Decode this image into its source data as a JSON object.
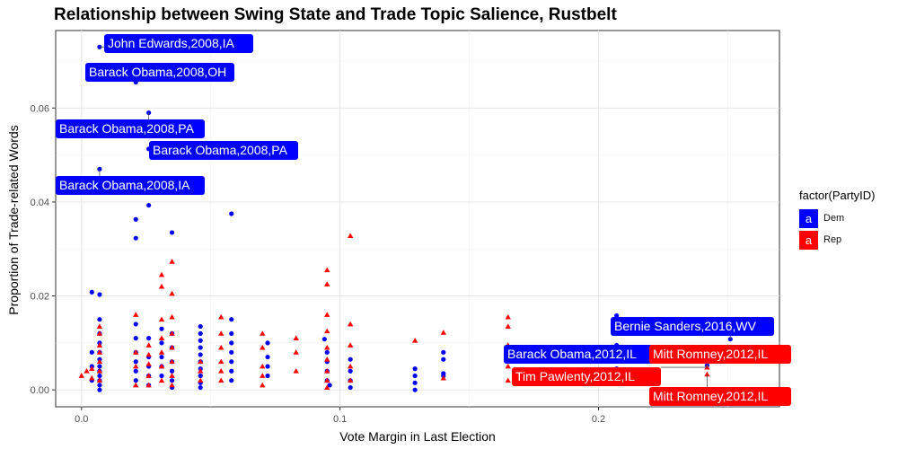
{
  "chart_data": {
    "type": "scatter",
    "title": "Relationship between Swing State and Trade Topic Salience, Rustbelt",
    "xlabel": "Vote Margin in Last Election",
    "ylabel": "Proportion of Trade-related Words",
    "xlim": [
      -0.01,
      0.27
    ],
    "ylim": [
      -0.0036,
      0.0765
    ],
    "x_ticks": [
      0.0,
      0.1,
      0.2
    ],
    "x_tick_labels": [
      "0.0",
      "0.1",
      "0.2"
    ],
    "y_ticks": [
      0.0,
      0.02,
      0.04,
      0.06
    ],
    "y_tick_labels": [
      "0.00",
      "0.02",
      "0.04",
      "0.06"
    ],
    "grid": true,
    "legend": {
      "title": "factor(PartyID)",
      "position": "right",
      "entries": [
        {
          "name": "Dem",
          "color": "#0000ff",
          "marker": "circle",
          "key_text": "a"
        },
        {
          "name": "Rep",
          "color": "#ff0000",
          "marker": "triangle",
          "key_text": "a"
        }
      ]
    },
    "series": [
      {
        "name": "Dem",
        "color": "#0000ff",
        "marker": "circle",
        "points": [
          [
            0.007,
            0.073
          ],
          [
            0.021,
            0.0655
          ],
          [
            0.026,
            0.059
          ],
          [
            0.026,
            0.0513
          ],
          [
            0.007,
            0.047
          ],
          [
            0.026,
            0.0393
          ],
          [
            0.058,
            0.0375
          ],
          [
            0.021,
            0.0363
          ],
          [
            0.035,
            0.0335
          ],
          [
            0.021,
            0.0323
          ],
          [
            0.004,
            0.0208
          ],
          [
            0.007,
            0.0203
          ],
          [
            0.004,
            0.008
          ],
          [
            0.004,
            0.005
          ],
          [
            0.004,
            0.002
          ],
          [
            0.007,
            0.015
          ],
          [
            0.007,
            0.012
          ],
          [
            0.007,
            0.01
          ],
          [
            0.007,
            0.008
          ],
          [
            0.007,
            0.0065
          ],
          [
            0.007,
            0.005
          ],
          [
            0.007,
            0.004
          ],
          [
            0.007,
            0.003
          ],
          [
            0.007,
            0.002
          ],
          [
            0.007,
            0.001
          ],
          [
            0.007,
            0.0
          ],
          [
            0.021,
            0.014
          ],
          [
            0.021,
            0.011
          ],
          [
            0.021,
            0.008
          ],
          [
            0.021,
            0.006
          ],
          [
            0.021,
            0.004
          ],
          [
            0.021,
            0.002
          ],
          [
            0.026,
            0.011
          ],
          [
            0.026,
            0.007
          ],
          [
            0.026,
            0.005
          ],
          [
            0.026,
            0.003
          ],
          [
            0.026,
            0.001
          ],
          [
            0.031,
            0.013
          ],
          [
            0.031,
            0.01
          ],
          [
            0.031,
            0.007
          ],
          [
            0.031,
            0.005
          ],
          [
            0.031,
            0.003
          ],
          [
            0.035,
            0.012
          ],
          [
            0.035,
            0.009
          ],
          [
            0.035,
            0.006
          ],
          [
            0.035,
            0.004
          ],
          [
            0.035,
            0.002
          ],
          [
            0.035,
            0.0005
          ],
          [
            0.046,
            0.0135
          ],
          [
            0.046,
            0.012
          ],
          [
            0.046,
            0.0105
          ],
          [
            0.046,
            0.009
          ],
          [
            0.046,
            0.0075
          ],
          [
            0.046,
            0.006
          ],
          [
            0.046,
            0.0045
          ],
          [
            0.046,
            0.003
          ],
          [
            0.046,
            0.0015
          ],
          [
            0.046,
            0.0005
          ],
          [
            0.058,
            0.015
          ],
          [
            0.058,
            0.012
          ],
          [
            0.058,
            0.01
          ],
          [
            0.058,
            0.008
          ],
          [
            0.058,
            0.006
          ],
          [
            0.058,
            0.004
          ],
          [
            0.058,
            0.002
          ],
          [
            0.072,
            0.01
          ],
          [
            0.072,
            0.007
          ],
          [
            0.072,
            0.005
          ],
          [
            0.072,
            0.003
          ],
          [
            0.094,
            0.0108
          ],
          [
            0.095,
            0.008
          ],
          [
            0.095,
            0.006
          ],
          [
            0.095,
            0.004
          ],
          [
            0.095,
            0.002
          ],
          [
            0.096,
            0.001
          ],
          [
            0.104,
            0.0065
          ],
          [
            0.104,
            0.004
          ],
          [
            0.104,
            0.002
          ],
          [
            0.104,
            0.0005
          ],
          [
            0.129,
            0.0045
          ],
          [
            0.129,
            0.003
          ],
          [
            0.129,
            0.0015
          ],
          [
            0.129,
            0.0
          ],
          [
            0.14,
            0.008
          ],
          [
            0.14,
            0.0065
          ],
          [
            0.14,
            0.0035
          ],
          [
            0.14,
            0.003
          ],
          [
            0.17,
            0.0065
          ],
          [
            0.169,
            0.002
          ],
          [
            0.207,
            0.0158
          ],
          [
            0.207,
            0.0143
          ],
          [
            0.207,
            0.0125
          ],
          [
            0.207,
            0.0095
          ],
          [
            0.207,
            0.0065
          ],
          [
            0.207,
            0.0045
          ],
          [
            0.251,
            0.0108
          ],
          [
            0.242,
            0.0052
          ]
        ]
      },
      {
        "name": "Rep",
        "color": "#ff0000",
        "marker": "triangle",
        "points": [
          [
            0.0,
            0.003
          ],
          [
            0.002,
            0.004
          ],
          [
            0.004,
            0.0045
          ],
          [
            0.004,
            0.0025
          ],
          [
            0.007,
            0.0135
          ],
          [
            0.007,
            0.012
          ],
          [
            0.007,
            0.0095
          ],
          [
            0.007,
            0.008
          ],
          [
            0.007,
            0.006
          ],
          [
            0.007,
            0.004
          ],
          [
            0.007,
            0.002
          ],
          [
            0.021,
            0.016
          ],
          [
            0.021,
            0.008
          ],
          [
            0.021,
            0.005
          ],
          [
            0.021,
            0.001
          ],
          [
            0.026,
            0.0095
          ],
          [
            0.026,
            0.0075
          ],
          [
            0.026,
            0.0055
          ],
          [
            0.026,
            0.003
          ],
          [
            0.026,
            0.001
          ],
          [
            0.031,
            0.0245
          ],
          [
            0.031,
            0.022
          ],
          [
            0.031,
            0.015
          ],
          [
            0.031,
            0.011
          ],
          [
            0.031,
            0.008
          ],
          [
            0.031,
            0.005
          ],
          [
            0.031,
            0.002
          ],
          [
            0.035,
            0.0273
          ],
          [
            0.035,
            0.0205
          ],
          [
            0.035,
            0.0155
          ],
          [
            0.035,
            0.012
          ],
          [
            0.035,
            0.009
          ],
          [
            0.035,
            0.006
          ],
          [
            0.035,
            0.003
          ],
          [
            0.035,
            0.001
          ],
          [
            0.046,
            0.006
          ],
          [
            0.046,
            0.004
          ],
          [
            0.046,
            0.002
          ],
          [
            0.054,
            0.0155
          ],
          [
            0.054,
            0.012
          ],
          [
            0.054,
            0.009
          ],
          [
            0.054,
            0.006
          ],
          [
            0.054,
            0.004
          ],
          [
            0.054,
            0.002
          ],
          [
            0.07,
            0.012
          ],
          [
            0.07,
            0.009
          ],
          [
            0.07,
            0.005
          ],
          [
            0.07,
            0.003
          ],
          [
            0.07,
            0.001
          ],
          [
            0.083,
            0.011
          ],
          [
            0.083,
            0.008
          ],
          [
            0.083,
            0.004
          ],
          [
            0.095,
            0.0255
          ],
          [
            0.095,
            0.0225
          ],
          [
            0.095,
            0.016
          ],
          [
            0.095,
            0.0125
          ],
          [
            0.095,
            0.009
          ],
          [
            0.095,
            0.0065
          ],
          [
            0.095,
            0.004
          ],
          [
            0.095,
            0.002
          ],
          [
            0.095,
            0.0005
          ],
          [
            0.104,
            0.0328
          ],
          [
            0.104,
            0.014
          ],
          [
            0.104,
            0.0095
          ],
          [
            0.104,
            0.005
          ],
          [
            0.104,
            0.002
          ],
          [
            0.129,
            0.0105
          ],
          [
            0.14,
            0.0122
          ],
          [
            0.14,
            0.0025
          ],
          [
            0.165,
            0.0155
          ],
          [
            0.165,
            0.0135
          ],
          [
            0.165,
            0.0095
          ],
          [
            0.165,
            0.005
          ],
          [
            0.165,
            0.002
          ],
          [
            0.242,
            0.0048
          ],
          [
            0.242,
            0.0033
          ]
        ]
      }
    ],
    "annotations": [
      {
        "text": "John Edwards,2008,IA",
        "party": "Dem",
        "x": 0.007,
        "y": 0.073
      },
      {
        "text": "Barack Obama,2008,OH",
        "party": "Dem",
        "x": 0.021,
        "y": 0.0655
      },
      {
        "text": "Barack Obama,2008,PA",
        "party": "Dem",
        "x": 0.026,
        "y": 0.059
      },
      {
        "text": "Barack Obama,2008,PA",
        "party": "Dem",
        "x": 0.026,
        "y": 0.0513
      },
      {
        "text": "Barack Obama,2008,IA",
        "party": "Dem",
        "x": 0.007,
        "y": 0.047
      },
      {
        "text": "Bernie Sanders,2016,WV",
        "party": "Dem",
        "x": 0.251,
        "y": 0.0108
      },
      {
        "text": "Barack Obama,2012,IL",
        "party": "Dem",
        "x": 0.17,
        "y": 0.0065
      },
      {
        "text": "Mitt Romney,2012,IL",
        "party": "Rep",
        "x": 0.242,
        "y": 0.0048
      },
      {
        "text": "Tim Pawlenty,2012,IL",
        "party": "Rep",
        "x": 0.242,
        "y": 0.0048
      },
      {
        "text": "Mitt Romney,2012,IL",
        "party": "Rep",
        "x": 0.242,
        "y": 0.0033
      }
    ]
  }
}
